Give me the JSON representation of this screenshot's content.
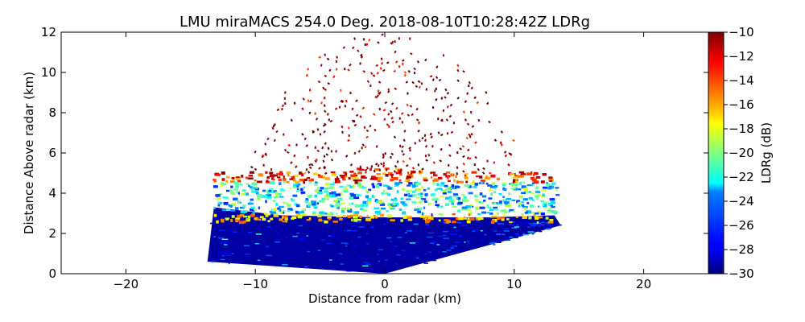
{
  "chart_data": {
    "type": "heatmap",
    "title": "LMU miraMACS 254.0 Deg. 2018-08-10T10:28:42Z  LDRg",
    "xlabel": "Distance from radar (km)",
    "ylabel": "Distance Above radar  (km)",
    "xlim": [
      -25,
      25
    ],
    "ylim": [
      0,
      12
    ],
    "xticks": [
      -20,
      -10,
      0,
      10,
      20
    ],
    "xtick_labels": [
      "−20",
      "−10",
      "0",
      "10",
      "20"
    ],
    "yticks": [
      0,
      2,
      4,
      6,
      8,
      10,
      12
    ],
    "ytick_labels": [
      "0",
      "2",
      "4",
      "6",
      "8",
      "10",
      "12"
    ],
    "colorbar": {
      "label": "LDRg (dB)",
      "range": [
        -30,
        -10
      ],
      "ticks": [
        -10,
        -12,
        -14,
        -16,
        -18,
        -20,
        -22,
        -24,
        -26,
        -28,
        -30
      ],
      "tick_labels": [
        "−10",
        "−12",
        "−14",
        "−16",
        "−18",
        "−20",
        "−22",
        "−24",
        "−26",
        "−28",
        "−30"
      ],
      "colormap": "jet"
    },
    "scan": {
      "azimuth_deg": 254.0,
      "left_edge_km": [
        [
          -13.7,
          0.6
        ],
        [
          -13.2,
          3.9
        ]
      ],
      "right_edge_km": [
        [
          13.6,
          2.4
        ],
        [
          13.1,
          5.5
        ]
      ],
      "low_ldr_region": "below ~2.8 km, values near -28 to -30 dB",
      "melting_layer_km": 2.8,
      "cloud_layer_km": [
        2.9,
        5.2
      ],
      "noise_speckle_max_km": 12
    }
  }
}
